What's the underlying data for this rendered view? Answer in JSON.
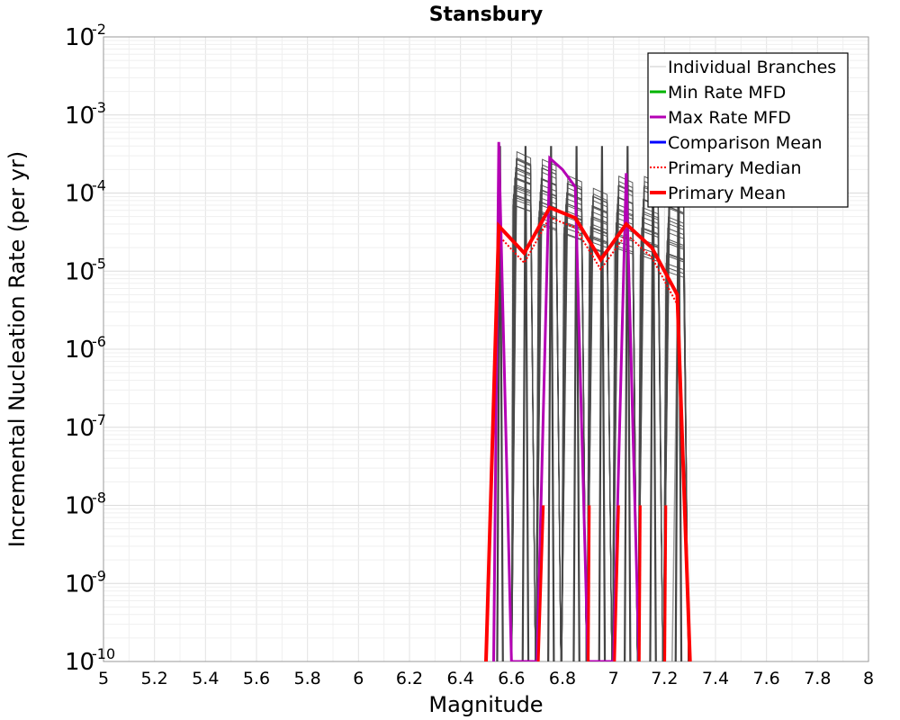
{
  "chart_data": {
    "type": "line",
    "title": "Stansbury",
    "xlabel": "Magnitude",
    "ylabel": "Incremental Nucleation Rate (per yr)",
    "xlim": [
      5,
      8
    ],
    "ylim_log10": [
      -10,
      -2
    ],
    "y_scale": "log",
    "grid": true,
    "legend_position": "top-right",
    "x_ticks": [
      "5",
      "5.2",
      "5.4",
      "5.6",
      "5.8",
      "6",
      "6.2",
      "6.4",
      "6.6",
      "6.8",
      "7",
      "7.2",
      "7.4",
      "7.6",
      "7.8",
      "8"
    ],
    "y_ticks": [
      {
        "base": "10",
        "exp": "-2"
      },
      {
        "base": "10",
        "exp": "-3"
      },
      {
        "base": "10",
        "exp": "-4"
      },
      {
        "base": "10",
        "exp": "-5"
      },
      {
        "base": "10",
        "exp": "-6"
      },
      {
        "base": "10",
        "exp": "-7"
      },
      {
        "base": "10",
        "exp": "-8"
      },
      {
        "base": "10",
        "exp": "-9"
      },
      {
        "base": "10",
        "exp": "-10"
      }
    ],
    "legend": [
      {
        "label": "Individual Branches",
        "color": "#c8c8c8",
        "style": "solid-thin"
      },
      {
        "label": "Min Rate MFD",
        "color": "#00b400",
        "style": "solid"
      },
      {
        "label": "Max Rate MFD",
        "color": "#b400b4",
        "style": "solid"
      },
      {
        "label": "Comparison Mean",
        "color": "#0000ff",
        "style": "solid"
      },
      {
        "label": " Primary Median",
        "color": "#ff0000",
        "style": "dotted"
      },
      {
        "label": "Primary Mean",
        "color": "#ff0000",
        "style": "solid-thick"
      }
    ],
    "primary_mean": {
      "x": [
        6.5,
        6.55,
        6.65,
        6.75,
        6.85,
        6.95,
        7.05,
        7.15,
        7.25,
        7.3
      ],
      "y": [
        1e-10,
        3.8e-05,
        1.7e-05,
        6.5e-05,
        4.8e-05,
        1.4e-05,
        4e-05,
        2e-05,
        5e-06,
        1e-10
      ]
    },
    "max_rate_mfd": {
      "x": [
        6.53,
        6.55,
        6.6,
        6.7,
        6.75,
        6.8,
        6.85,
        6.9,
        7.0,
        7.05,
        7.1
      ],
      "y": [
        1e-10,
        0.00045,
        1e-10,
        1e-10,
        0.00028,
        0.0002,
        0.00012,
        1e-10,
        1e-10,
        0.00018,
        1e-10
      ]
    },
    "branch_upper_profile": {
      "x": [
        6.65,
        6.75,
        6.85,
        6.95,
        7.05,
        7.15,
        7.25
      ],
      "y": [
        0.00032,
        0.00026,
        0.00016,
        0.00011,
        0.00016,
        0.00016,
        0.00014
      ]
    },
    "branch_lower_profile": {
      "x": [
        6.65,
        6.75,
        6.85,
        6.95,
        7.05,
        7.15,
        7.25
      ],
      "y": [
        7e-05,
        4e-05,
        3e-05,
        2e-05,
        2e-05,
        1.6e-05,
        1e-05
      ]
    }
  }
}
